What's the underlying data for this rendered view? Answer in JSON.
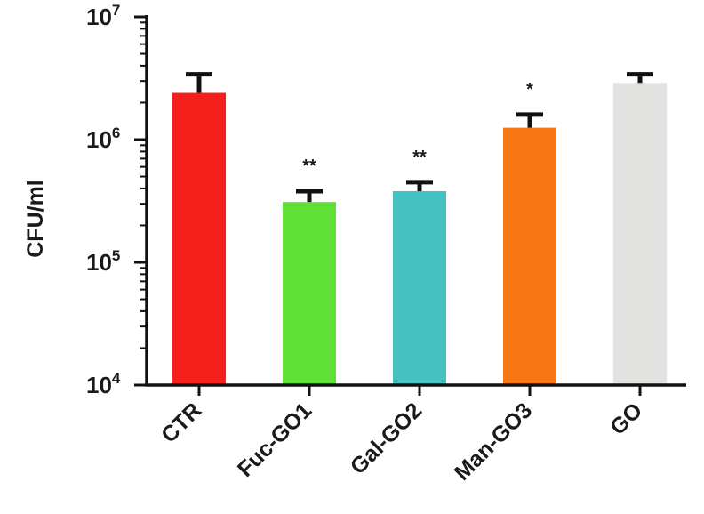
{
  "chart_data": {
    "type": "bar",
    "title": "",
    "xlabel": "",
    "ylabel": "CFU/ml",
    "yscale": "log",
    "ylim": [
      10000,
      10000000
    ],
    "yticks": [
      {
        "base": "10",
        "exp": "4",
        "value": 10000
      },
      {
        "base": "10",
        "exp": "5",
        "value": 100000
      },
      {
        "base": "10",
        "exp": "6",
        "value": 1000000
      },
      {
        "base": "10",
        "exp": "7",
        "value": 10000000
      }
    ],
    "categories": [
      "CTR",
      "Fuc-GO1",
      "Gal-GO2",
      "Man-GO3",
      "GO"
    ],
    "values": [
      2400000,
      310000,
      380000,
      1250000,
      2900000
    ],
    "error_upper": [
      3400000,
      380000,
      450000,
      1600000,
      3400000
    ],
    "significance": [
      "",
      "**",
      "**",
      "*",
      ""
    ],
    "colors": [
      "#f5201a",
      "#60e035",
      "#44c1c0",
      "#f87614",
      "#e2e2e0"
    ],
    "grid": false,
    "legend": "none"
  }
}
